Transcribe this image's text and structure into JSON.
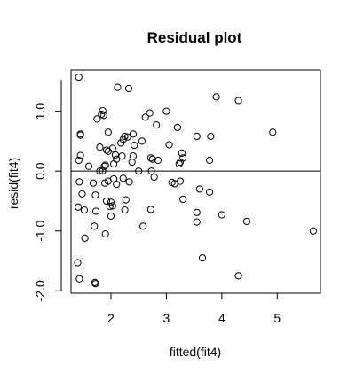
{
  "chart_data": {
    "type": "scatter",
    "title": "Residual plot",
    "xlabel": "fitted(fit4)",
    "ylabel": "resid(fit4)",
    "xlim": [
      1.28,
      5.78
    ],
    "ylim": [
      -2.04,
      1.69
    ],
    "xticks": [
      2,
      3,
      4,
      5
    ],
    "yticks": [
      -2.0,
      -1.0,
      0.0,
      1.0
    ],
    "ytick_labels": [
      "-2.0",
      "-1.0",
      "0.0",
      "1.0"
    ],
    "reference_line_y": 0,
    "grid": false,
    "legend": "none",
    "points": [
      [
        1.42,
        1.57
      ],
      [
        1.45,
        0.62
      ],
      [
        1.45,
        0.6
      ],
      [
        1.42,
        0.18
      ],
      [
        1.45,
        0.26
      ],
      [
        1.43,
        -0.18
      ],
      [
        1.48,
        -0.38
      ],
      [
        1.41,
        -0.6
      ],
      [
        1.52,
        -0.65
      ],
      [
        1.53,
        -1.12
      ],
      [
        1.4,
        -1.53
      ],
      [
        1.43,
        -1.8
      ],
      [
        1.6,
        0.08
      ],
      [
        1.68,
        -0.2
      ],
      [
        1.72,
        -0.4
      ],
      [
        1.73,
        -0.67
      ],
      [
        1.7,
        -0.92
      ],
      [
        1.71,
        -1.86
      ],
      [
        1.72,
        -1.88
      ],
      [
        1.75,
        0.87
      ],
      [
        1.85,
        1.01
      ],
      [
        1.83,
        0.95
      ],
      [
        1.87,
        0.93
      ],
      [
        1.8,
        0.4
      ],
      [
        1.8,
        0.0
      ],
      [
        1.85,
        0.0
      ],
      [
        1.9,
        0.1
      ],
      [
        1.88,
        0.08
      ],
      [
        1.92,
        0.35
      ],
      [
        1.95,
        0.33
      ],
      [
        1.89,
        -0.2
      ],
      [
        1.92,
        -0.5
      ],
      [
        1.95,
        -0.17
      ],
      [
        1.98,
        -0.59
      ],
      [
        2.0,
        -0.52
      ],
      [
        2.0,
        -0.75
      ],
      [
        2.03,
        -0.58
      ],
      [
        1.9,
        -1.05
      ],
      [
        1.95,
        0.65
      ],
      [
        2.05,
        0.12
      ],
      [
        2.03,
        0.38
      ],
      [
        2.08,
        0.27
      ],
      [
        2.1,
        0.2
      ],
      [
        2.05,
        -0.13
      ],
      [
        2.1,
        -0.22
      ],
      [
        2.12,
        1.4
      ],
      [
        2.18,
        0.47
      ],
      [
        2.22,
        0.53
      ],
      [
        2.25,
        0.58
      ],
      [
        2.2,
        0.25
      ],
      [
        2.22,
        -0.12
      ],
      [
        2.27,
        -0.48
      ],
      [
        2.25,
        -0.65
      ],
      [
        2.3,
        0.57
      ],
      [
        2.32,
        1.38
      ],
      [
        2.33,
        -0.18
      ],
      [
        2.38,
        0.15
      ],
      [
        2.4,
        0.62
      ],
      [
        2.4,
        0.25
      ],
      [
        2.42,
        0.43
      ],
      [
        2.5,
        0.0
      ],
      [
        2.56,
        0.5
      ],
      [
        2.58,
        -0.92
      ],
      [
        2.62,
        0.9
      ],
      [
        2.7,
        0.97
      ],
      [
        2.72,
        0.22
      ],
      [
        2.73,
        0.0
      ],
      [
        2.75,
        0.2
      ],
      [
        2.78,
        -0.1
      ],
      [
        2.82,
        0.77
      ],
      [
        2.85,
        0.18
      ],
      [
        2.72,
        -0.64
      ],
      [
        3.0,
        1.0
      ],
      [
        3.05,
        0.44
      ],
      [
        3.1,
        -0.19
      ],
      [
        3.15,
        -0.21
      ],
      [
        3.2,
        0.73
      ],
      [
        3.23,
        0.12
      ],
      [
        3.25,
        0.15
      ],
      [
        3.28,
        0.3
      ],
      [
        3.3,
        0.22
      ],
      [
        3.25,
        -0.17
      ],
      [
        3.3,
        -0.47
      ],
      [
        3.55,
        0.58
      ],
      [
        3.6,
        -0.3
      ],
      [
        3.55,
        -0.69
      ],
      [
        3.55,
        -0.85
      ],
      [
        3.65,
        -1.45
      ],
      [
        3.78,
        0.18
      ],
      [
        3.8,
        0.58
      ],
      [
        3.78,
        -0.35
      ],
      [
        3.9,
        1.24
      ],
      [
        4.0,
        -0.73
      ],
      [
        4.3,
        1.18
      ],
      [
        4.45,
        -0.84
      ],
      [
        4.3,
        -1.75
      ],
      [
        4.92,
        0.65
      ],
      [
        5.65,
        -1.0
      ]
    ]
  }
}
